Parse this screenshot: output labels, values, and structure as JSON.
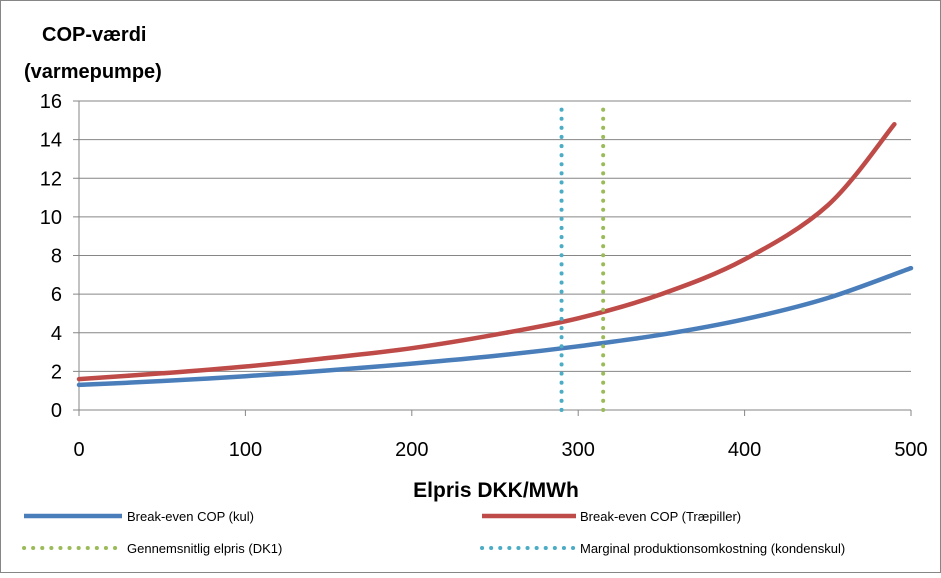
{
  "chart_data": {
    "type": "line",
    "ylabel_lines": [
      "COP-værdi",
      "(varmepumpe)"
    ],
    "xlabel": "Elpris DKK/MWh",
    "xlim": [
      0,
      500
    ],
    "ylim": [
      0,
      16
    ],
    "x_ticks": [
      0,
      100,
      200,
      300,
      400,
      500
    ],
    "y_ticks": [
      0,
      2,
      4,
      6,
      8,
      10,
      12,
      14,
      16
    ],
    "grid": "horizontal",
    "legend_position": "bottom",
    "series": [
      {
        "name": "Break-even COP (kul)",
        "color": "#4A7EBB",
        "style": "solid",
        "x": [
          0,
          50,
          100,
          150,
          200,
          250,
          300,
          350,
          400,
          450,
          500
        ],
        "y": [
          1.3,
          1.5,
          1.75,
          2.05,
          2.4,
          2.8,
          3.3,
          3.9,
          4.7,
          5.8,
          7.35
        ]
      },
      {
        "name": "Break-even COP (Træpiller)",
        "color": "#BE4B48",
        "style": "solid",
        "x": [
          0,
          50,
          100,
          150,
          200,
          250,
          300,
          350,
          400,
          450,
          490
        ],
        "y": [
          1.6,
          1.9,
          2.25,
          2.7,
          3.2,
          3.9,
          4.75,
          6.0,
          7.8,
          10.6,
          14.8
        ]
      },
      {
        "name": "Gennemsnitlig elpris (DK1)",
        "color": "#9BBB59",
        "style": "dotted",
        "x": [
          315,
          315
        ],
        "y": [
          0,
          15.7
        ]
      },
      {
        "name": "Marginal produktionsomkostning (kondenskul)",
        "color": "#4BACC6",
        "style": "dotted",
        "x": [
          290,
          290
        ],
        "y": [
          0,
          15.7
        ]
      }
    ]
  }
}
